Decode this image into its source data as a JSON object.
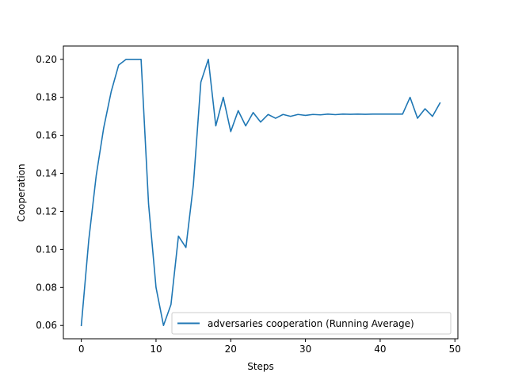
{
  "chart_data": {
    "type": "line",
    "title": "",
    "xlabel": "Steps",
    "ylabel": "Cooperation",
    "xlim": [
      -2.4,
      50.4
    ],
    "ylim": [
      0.053,
      0.207
    ],
    "xticks": [
      0,
      10,
      20,
      30,
      40,
      50
    ],
    "yticks": [
      0.06,
      0.08,
      0.1,
      0.12,
      0.14,
      0.16,
      0.18,
      0.2
    ],
    "xtick_labels": [
      "0",
      "10",
      "20",
      "30",
      "40",
      "50"
    ],
    "ytick_labels": [
      "0.06",
      "0.08",
      "0.10",
      "0.12",
      "0.14",
      "0.16",
      "0.18",
      "0.20"
    ],
    "grid": false,
    "legend_position": "lower-right",
    "series": [
      {
        "name": "adversaries cooperation (Running Average)",
        "color": "#1f77b4",
        "x": [
          0,
          1,
          2,
          3,
          4,
          5,
          6,
          7,
          8,
          9,
          10,
          11,
          12,
          13,
          14,
          15,
          16,
          17,
          18,
          19,
          20,
          21,
          22,
          23,
          24,
          25,
          26,
          27,
          28,
          29,
          30,
          31,
          32,
          33,
          34,
          35,
          36,
          37,
          38,
          39,
          40,
          41,
          42,
          43,
          44,
          45,
          46,
          47,
          48
        ],
        "y": [
          0.06,
          0.105,
          0.139,
          0.164,
          0.183,
          0.197,
          0.2,
          0.2,
          0.2,
          0.124,
          0.08,
          0.06,
          0.071,
          0.107,
          0.101,
          0.134,
          0.188,
          0.2,
          0.165,
          0.18,
          0.162,
          0.173,
          0.165,
          0.172,
          0.167,
          0.171,
          0.169,
          0.171,
          0.17,
          0.171,
          0.1705,
          0.171,
          0.1708,
          0.1712,
          0.1709,
          0.1712,
          0.1711,
          0.1712,
          0.1711,
          0.1712,
          0.1712,
          0.1712,
          0.1712,
          0.1712,
          0.18,
          0.169,
          0.174,
          0.17,
          0.177
        ]
      }
    ]
  }
}
